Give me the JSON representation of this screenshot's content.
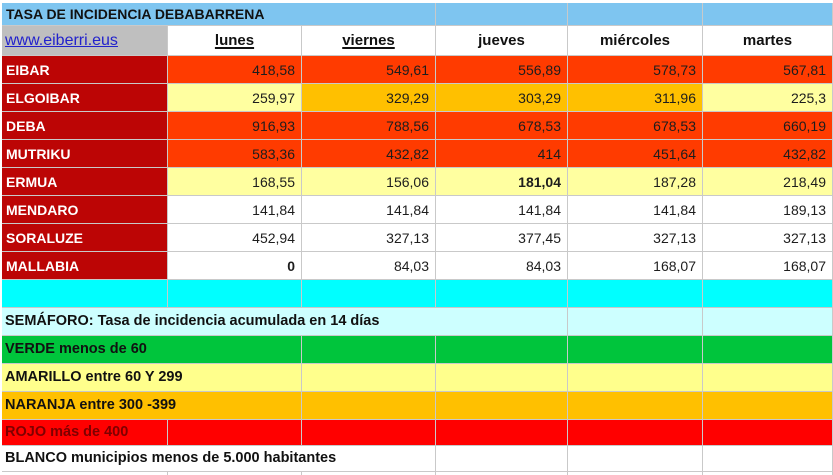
{
  "table": {
    "title": "TASA DE INCIDENCIA DEBABARRENA",
    "website": "www.eiberri.eus",
    "day_columns": [
      {
        "label": "lunes",
        "underlined": true
      },
      {
        "label": "viernes",
        "underlined": true
      },
      {
        "label": "jueves",
        "underlined": false
      },
      {
        "label": "miércoles",
        "underlined": false
      },
      {
        "label": "martes",
        "underlined": false
      }
    ],
    "municipalities": [
      {
        "name": "EIBAR",
        "values": [
          "418,58",
          "549,61",
          "556,89",
          "578,73",
          "567,81"
        ],
        "cell_colors": [
          "red",
          "red",
          "red",
          "red",
          "red"
        ],
        "bold": [
          false,
          false,
          false,
          false,
          false
        ]
      },
      {
        "name": "ELGOIBAR",
        "values": [
          "259,97",
          "329,29",
          "303,29",
          "311,96",
          "225,3"
        ],
        "cell_colors": [
          "yellow",
          "orange",
          "orange",
          "orange",
          "yellow"
        ],
        "bold": [
          false,
          false,
          false,
          false,
          false
        ]
      },
      {
        "name": "DEBA",
        "values": [
          "916,93",
          "788,56",
          "678,53",
          "678,53",
          "660,19"
        ],
        "cell_colors": [
          "red",
          "red",
          "red",
          "red",
          "red"
        ],
        "bold": [
          false,
          false,
          false,
          false,
          false
        ]
      },
      {
        "name": "MUTRIKU",
        "values": [
          "583,36",
          "432,82",
          "414",
          "451,64",
          "432,82"
        ],
        "cell_colors": [
          "red",
          "red",
          "red",
          "red",
          "red"
        ],
        "bold": [
          false,
          false,
          false,
          false,
          false
        ]
      },
      {
        "name": "ERMUA",
        "values": [
          "168,55",
          "156,06",
          "181,04",
          "187,28",
          "218,49"
        ],
        "cell_colors": [
          "yellow",
          "yellow",
          "yellow",
          "yellow",
          "yellow"
        ],
        "bold": [
          false,
          false,
          true,
          false,
          false
        ]
      },
      {
        "name": "MENDARO",
        "values": [
          "141,84",
          "141,84",
          "141,84",
          "141,84",
          "189,13"
        ],
        "cell_colors": [
          "white",
          "white",
          "white",
          "white",
          "white"
        ],
        "bold": [
          false,
          false,
          false,
          false,
          false
        ]
      },
      {
        "name": "SORALUZE",
        "values": [
          "452,94",
          "327,13",
          "377,45",
          "327,13",
          "327,13"
        ],
        "cell_colors": [
          "white",
          "white",
          "white",
          "white",
          "white"
        ],
        "bold": [
          false,
          false,
          false,
          false,
          false
        ]
      },
      {
        "name": "MALLABIA",
        "values": [
          "0",
          "84,03",
          "84,03",
          "168,07",
          "168,07"
        ],
        "cell_colors": [
          "white",
          "white",
          "white",
          "white",
          "white"
        ],
        "bold": [
          true,
          false,
          false,
          false,
          false
        ]
      }
    ]
  },
  "legend": {
    "header": "SEMÁFORO:  Tasa de incidencia acumulada en 14 días",
    "items": [
      {
        "label": "VERDE menos de 60",
        "color_key": "green",
        "span": 2
      },
      {
        "label": "AMARILLO entre 60 Y 299",
        "color_key": "yellow_legend",
        "span": 2
      },
      {
        "label": "NARANJA entre 300 -399",
        "color_key": "orange",
        "span": 2
      },
      {
        "label": "ROJO más de 400",
        "color_key": "pure_red",
        "span": 1,
        "text_color": "#7e0000"
      },
      {
        "label": "BLANCO municipios menos de 5.000 habitantes",
        "color_key": "white",
        "span": 3
      }
    ]
  },
  "colors": {
    "header_blue": "#7ec5f0",
    "link_gray": "#bfbfbf",
    "label_dark_red": "#bc0505",
    "red": "#ff3b00",
    "yellow": "#ffffa0",
    "yellow_legend": "#ffff8c",
    "orange": "#ffc000",
    "white": "#ffffff",
    "green": "#00c53c",
    "pure_red": "#ff0000",
    "spacer_cyan": "#00ffff",
    "semaforo_cyan": "#cdffff"
  }
}
